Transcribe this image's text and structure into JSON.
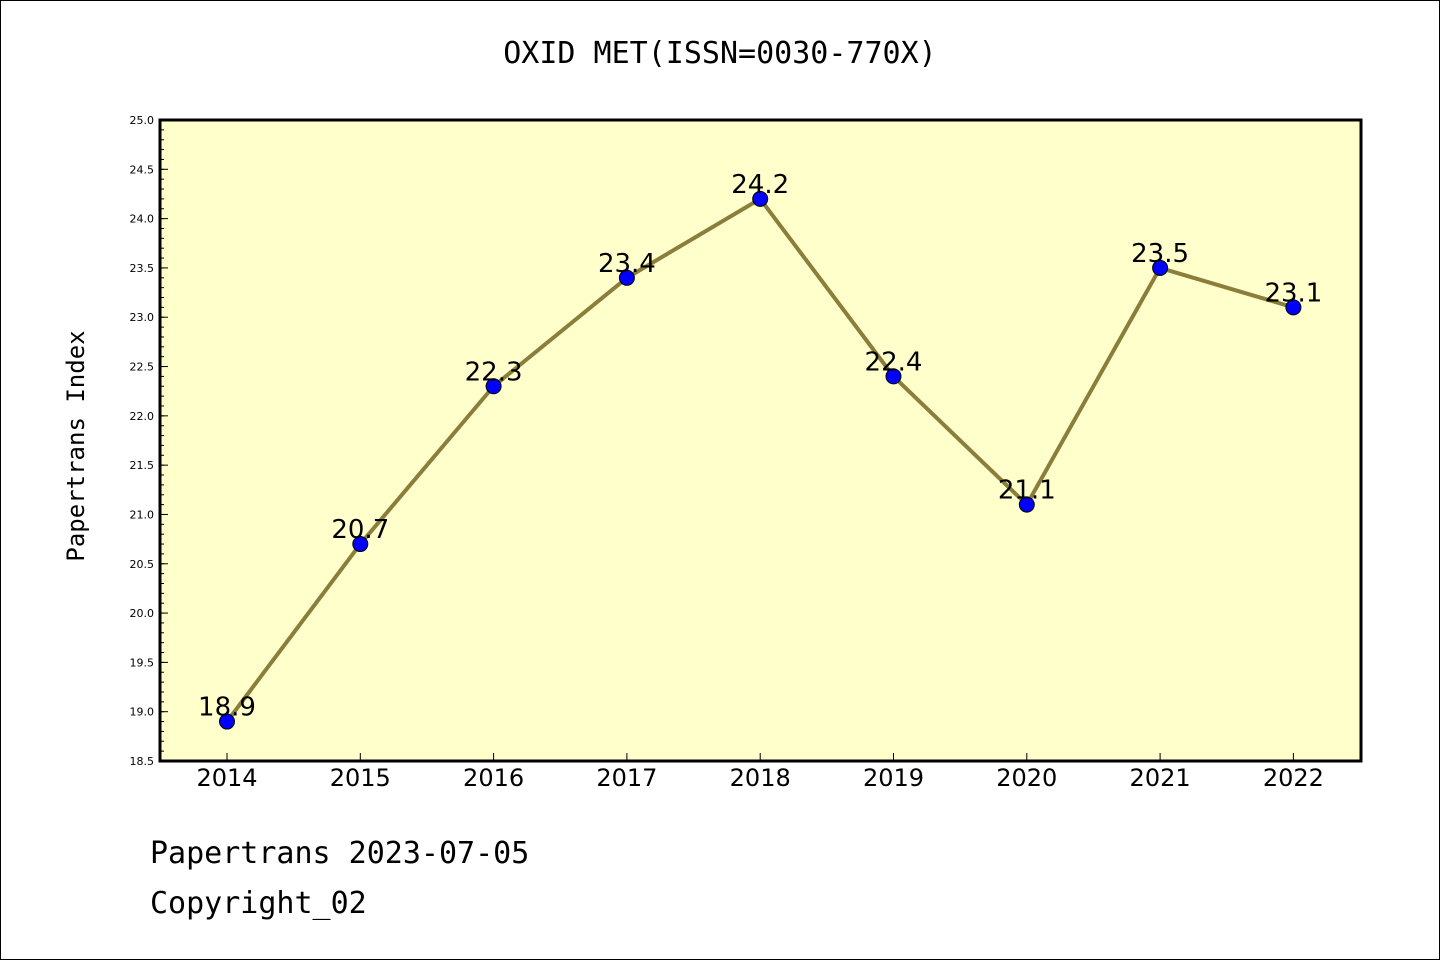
{
  "chart_data": {
    "type": "line",
    "title": "OXID MET(ISSN=0030-770X)",
    "ylabel": "Papertrans Index",
    "xlabel": "",
    "categories": [
      "2014",
      "2015",
      "2016",
      "2017",
      "2018",
      "2019",
      "2020",
      "2021",
      "2022"
    ],
    "values": [
      18.9,
      20.7,
      22.3,
      23.4,
      24.2,
      22.4,
      21.1,
      23.5,
      23.1
    ],
    "data_labels": [
      "18.9",
      "20.7",
      "22.3",
      "23.4",
      "24.2",
      "22.4",
      "21.1",
      "23.5",
      "23.1"
    ],
    "ylim": [
      18.5,
      25.0
    ],
    "yticks": [
      "18.5",
      "19.0",
      "19.5",
      "20.0",
      "20.5",
      "21.0",
      "21.5",
      "22.0",
      "22.5",
      "23.0",
      "23.5",
      "24.0",
      "24.5",
      "25.0"
    ],
    "grid": false,
    "colors": {
      "plot_background": "#ffffcc",
      "line": "#8b7d3a",
      "marker": "#0000ff"
    }
  },
  "footer": {
    "line1": "Papertrans 2023-07-05",
    "line2": "Copyright_02"
  }
}
